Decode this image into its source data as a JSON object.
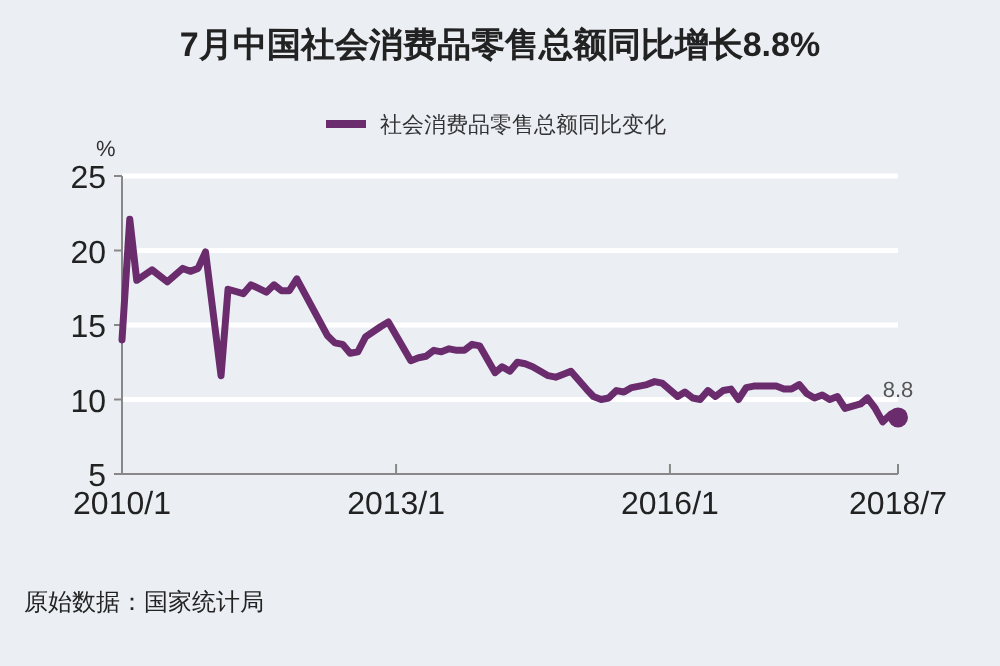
{
  "chart_data": {
    "type": "line",
    "title": "7月中国社会消费品零售总额同比增长8.8%",
    "ylabel": "%",
    "x": [
      "2010-01",
      "2010-02",
      "2010-03",
      "2010-05",
      "2010-07",
      "2010-09",
      "2010-10",
      "2010-11",
      "2010-12",
      "2011-02",
      "2011-03",
      "2011-05",
      "2011-06",
      "2011-08",
      "2011-09",
      "2011-10",
      "2011-11",
      "2011-12",
      "2012-04",
      "2012-05",
      "2012-06",
      "2012-07",
      "2012-08",
      "2012-09",
      "2012-11",
      "2012-12",
      "2013-03",
      "2013-04",
      "2013-05",
      "2013-06",
      "2013-07",
      "2013-08",
      "2013-09",
      "2013-10",
      "2013-11",
      "2013-12",
      "2014-02",
      "2014-03",
      "2014-04",
      "2014-05",
      "2014-06",
      "2014-07",
      "2014-08",
      "2014-09",
      "2014-10",
      "2014-11",
      "2014-12",
      "2015-02",
      "2015-03",
      "2015-04",
      "2015-05",
      "2015-06",
      "2015-07",
      "2015-08",
      "2015-09",
      "2015-10",
      "2015-11",
      "2015-12",
      "2016-02",
      "2016-03",
      "2016-04",
      "2016-05",
      "2016-06",
      "2016-07",
      "2016-08",
      "2016-09",
      "2016-10",
      "2016-11",
      "2016-12",
      "2017-03",
      "2017-04",
      "2017-05",
      "2017-06",
      "2017-07",
      "2017-08",
      "2017-09",
      "2017-10",
      "2017-11",
      "2017-12",
      "2018-02",
      "2018-03",
      "2018-04",
      "2018-05",
      "2018-06",
      "2018-07"
    ],
    "series": [
      {
        "name": "社会消费品零售总额同比变化",
        "color": "#6b2c6e",
        "values": [
          14,
          22.1,
          18,
          18.7,
          17.9,
          18.8,
          18.6,
          18.8,
          19.9,
          11.6,
          17.4,
          17.1,
          17.7,
          17.2,
          17.7,
          17.3,
          17.3,
          18.1,
          14.3,
          13.8,
          13.7,
          13.1,
          13.2,
          14.2,
          14.9,
          15.2,
          12.6,
          12.8,
          12.9,
          13.3,
          13.2,
          13.4,
          13.3,
          13.3,
          13.7,
          13.6,
          11.8,
          12.2,
          11.9,
          12.5,
          12.4,
          12.2,
          11.9,
          11.6,
          11.5,
          11.7,
          11.9,
          10.7,
          10.2,
          10,
          10.1,
          10.6,
          10.5,
          10.8,
          10.9,
          11,
          11.2,
          11.1,
          10.2,
          10.5,
          10.1,
          10,
          10.6,
          10.2,
          10.6,
          10.7,
          10,
          10.8,
          10.9,
          10.9,
          10.7,
          10.7,
          11,
          10.4,
          10.1,
          10.3,
          10,
          10.2,
          9.4,
          9.7,
          10.1,
          9.4,
          8.5,
          9,
          8.8
        ]
      }
    ],
    "xlim": [
      "2010-01",
      "2018-07"
    ],
    "xticks": [
      {
        "value": "2010-01",
        "label": "2010/1"
      },
      {
        "value": "2013-01",
        "label": "2013/1"
      },
      {
        "value": "2016-01",
        "label": "2016/1"
      },
      {
        "value": "2018-07",
        "label": "2018/7"
      }
    ],
    "ylim": [
      5,
      25
    ],
    "yticks": [
      5,
      10,
      15,
      20,
      25
    ],
    "grid": "y",
    "legend": "top",
    "marker": "none",
    "line_style": "solid",
    "annotations": [
      {
        "text": "8.8",
        "x": "2018-07",
        "y": 8.8
      },
      "原始数据：国家统计局"
    ]
  }
}
